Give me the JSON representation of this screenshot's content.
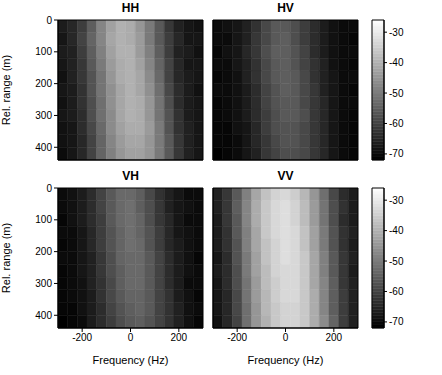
{
  "chart_data": [
    {
      "type": "heatmap",
      "title": "HH",
      "ylabel": "Rel. range (m)",
      "xlim": [
        -300,
        300
      ],
      "ylim": [
        0,
        440
      ],
      "xticks": [
        -200,
        0,
        200
      ],
      "yticks": [
        0,
        100,
        200,
        300,
        400
      ],
      "tick_labels": "y",
      "x_bins": [
        -300,
        -260,
        -220,
        -180,
        -140,
        -100,
        -60,
        -20,
        20,
        60,
        100,
        140,
        180,
        220,
        260,
        300
      ],
      "y_bins": [
        0,
        40,
        80,
        120,
        160,
        200,
        240,
        280,
        320,
        360,
        400,
        440
      ],
      "cells": [
        [
          -67,
          -65,
          -61,
          -55,
          -48,
          -43,
          -40,
          -41,
          -45,
          -50,
          -56,
          -62,
          -66,
          -68,
          -69
        ],
        [
          -68,
          -65,
          -60,
          -54,
          -48,
          -42,
          -40,
          -41,
          -44,
          -50,
          -56,
          -61,
          -65,
          -68,
          -68
        ],
        [
          -67,
          -66,
          -61,
          -55,
          -49,
          -43,
          -40,
          -40,
          -44,
          -49,
          -55,
          -61,
          -66,
          -67,
          -69
        ],
        [
          -68,
          -66,
          -62,
          -56,
          -50,
          -44,
          -41,
          -40,
          -43,
          -48,
          -54,
          -60,
          -65,
          -68,
          -68
        ],
        [
          -69,
          -66,
          -62,
          -57,
          -51,
          -45,
          -41,
          -40,
          -42,
          -47,
          -53,
          -60,
          -65,
          -67,
          -68
        ],
        [
          -68,
          -67,
          -63,
          -57,
          -51,
          -46,
          -42,
          -40,
          -42,
          -46,
          -52,
          -59,
          -64,
          -67,
          -69
        ],
        [
          -69,
          -67,
          -63,
          -58,
          -52,
          -46,
          -42,
          -40,
          -41,
          -45,
          -51,
          -58,
          -64,
          -67,
          -68
        ],
        [
          -68,
          -67,
          -64,
          -58,
          -52,
          -47,
          -42,
          -40,
          -41,
          -45,
          -51,
          -57,
          -63,
          -67,
          -68
        ],
        [
          -69,
          -68,
          -64,
          -59,
          -53,
          -47,
          -43,
          -41,
          -41,
          -44,
          -50,
          -57,
          -63,
          -66,
          -68
        ],
        [
          -69,
          -68,
          -65,
          -60,
          -54,
          -48,
          -44,
          -42,
          -42,
          -45,
          -50,
          -56,
          -62,
          -66,
          -68
        ],
        [
          -70,
          -68,
          -65,
          -60,
          -54,
          -49,
          -45,
          -43,
          -43,
          -45,
          -50,
          -56,
          -62,
          -66,
          -68
        ]
      ]
    },
    {
      "type": "heatmap",
      "title": "HV",
      "xlim": [
        -300,
        300
      ],
      "ylim": [
        0,
        440
      ],
      "xticks": [
        -200,
        0,
        200
      ],
      "yticks": [
        0,
        100,
        200,
        300,
        400
      ],
      "tick_labels": false,
      "x_bins": [
        -300,
        -260,
        -220,
        -180,
        -140,
        -100,
        -60,
        -20,
        20,
        60,
        100,
        140,
        180,
        220,
        260,
        300
      ],
      "y_bins": [
        0,
        40,
        80,
        120,
        160,
        200,
        240,
        280,
        320,
        360,
        400,
        440
      ],
      "cells": [
        [
          -70,
          -69,
          -68,
          -66,
          -63,
          -59,
          -56,
          -56,
          -58,
          -61,
          -64,
          -67,
          -69,
          -70,
          -70
        ],
        [
          -70,
          -70,
          -68,
          -66,
          -62,
          -59,
          -56,
          -55,
          -58,
          -61,
          -64,
          -67,
          -69,
          -70,
          -71
        ],
        [
          -71,
          -69,
          -68,
          -65,
          -62,
          -58,
          -55,
          -55,
          -57,
          -60,
          -64,
          -67,
          -69,
          -70,
          -70
        ],
        [
          -70,
          -70,
          -68,
          -66,
          -63,
          -59,
          -56,
          -55,
          -57,
          -60,
          -63,
          -66,
          -69,
          -70,
          -71
        ],
        [
          -71,
          -70,
          -69,
          -66,
          -63,
          -59,
          -56,
          -55,
          -56,
          -59,
          -63,
          -66,
          -68,
          -70,
          -70
        ],
        [
          -70,
          -70,
          -69,
          -67,
          -64,
          -60,
          -57,
          -55,
          -56,
          -59,
          -62,
          -66,
          -68,
          -70,
          -71
        ],
        [
          -71,
          -70,
          -69,
          -67,
          -64,
          -60,
          -57,
          -56,
          -56,
          -59,
          -62,
          -65,
          -68,
          -70,
          -70
        ],
        [
          -71,
          -70,
          -69,
          -67,
          -64,
          -61,
          -58,
          -56,
          -56,
          -58,
          -62,
          -65,
          -68,
          -70,
          -71
        ],
        [
          -71,
          -71,
          -69,
          -68,
          -65,
          -61,
          -58,
          -57,
          -57,
          -59,
          -62,
          -65,
          -68,
          -70,
          -71
        ],
        [
          -71,
          -71,
          -70,
          -68,
          -65,
          -62,
          -59,
          -57,
          -57,
          -59,
          -62,
          -65,
          -68,
          -70,
          -71
        ],
        [
          -72,
          -71,
          -70,
          -68,
          -66,
          -62,
          -60,
          -58,
          -58,
          -59,
          -62,
          -65,
          -68,
          -70,
          -71
        ]
      ],
      "colorbar": {
        "range": [
          -72,
          -26
        ],
        "ticks": [
          -70,
          -60,
          -50,
          -40,
          -30
        ]
      }
    },
    {
      "type": "heatmap",
      "title": "VH",
      "xlabel": "Frequency (Hz)",
      "ylabel": "Rel. range (m)",
      "xlim": [
        -300,
        300
      ],
      "ylim": [
        0,
        440
      ],
      "xticks": [
        -200,
        0,
        200
      ],
      "yticks": [
        0,
        100,
        200,
        300,
        400
      ],
      "tick_labels": true,
      "x_bins": [
        -300,
        -260,
        -220,
        -180,
        -140,
        -100,
        -60,
        -20,
        20,
        60,
        100,
        140,
        180,
        220,
        260,
        300
      ],
      "y_bins": [
        0,
        40,
        80,
        120,
        160,
        200,
        240,
        280,
        320,
        360,
        400,
        440
      ],
      "cells": [
        [
          -70,
          -69,
          -67,
          -64,
          -60,
          -56,
          -53,
          -53,
          -55,
          -59,
          -63,
          -66,
          -68,
          -70,
          -70
        ],
        [
          -70,
          -69,
          -67,
          -64,
          -60,
          -56,
          -53,
          -52,
          -55,
          -58,
          -62,
          -66,
          -68,
          -69,
          -70
        ],
        [
          -71,
          -69,
          -67,
          -64,
          -61,
          -56,
          -53,
          -52,
          -54,
          -58,
          -62,
          -65,
          -68,
          -70,
          -70
        ],
        [
          -70,
          -70,
          -68,
          -65,
          -61,
          -57,
          -54,
          -52,
          -54,
          -57,
          -61,
          -65,
          -68,
          -69,
          -70
        ],
        [
          -71,
          -70,
          -68,
          -65,
          -61,
          -57,
          -54,
          -52,
          -53,
          -57,
          -61,
          -65,
          -67,
          -69,
          -70
        ],
        [
          -70,
          -70,
          -68,
          -66,
          -62,
          -58,
          -54,
          -53,
          -53,
          -56,
          -60,
          -64,
          -67,
          -69,
          -71
        ],
        [
          -71,
          -70,
          -68,
          -66,
          -62,
          -58,
          -55,
          -53,
          -53,
          -56,
          -60,
          -64,
          -67,
          -69,
          -70
        ],
        [
          -71,
          -70,
          -69,
          -66,
          -63,
          -59,
          -55,
          -53,
          -53,
          -56,
          -60,
          -64,
          -67,
          -70,
          -70
        ],
        [
          -71,
          -70,
          -69,
          -67,
          -63,
          -59,
          -56,
          -54,
          -54,
          -56,
          -60,
          -63,
          -67,
          -69,
          -71
        ],
        [
          -71,
          -71,
          -69,
          -67,
          -64,
          -60,
          -57,
          -55,
          -54,
          -56,
          -60,
          -63,
          -66,
          -69,
          -70
        ],
        [
          -72,
          -71,
          -70,
          -67,
          -64,
          -61,
          -58,
          -56,
          -55,
          -57,
          -60,
          -63,
          -66,
          -69,
          -71
        ]
      ]
    },
    {
      "type": "heatmap",
      "title": "VV",
      "xlabel": "Frequency (Hz)",
      "xlim": [
        -300,
        300
      ],
      "ylim": [
        0,
        440
      ],
      "xticks": [
        -200,
        0,
        200
      ],
      "yticks": [
        0,
        100,
        200,
        300,
        400
      ],
      "tick_labels": "x",
      "x_bins": [
        -300,
        -260,
        -220,
        -180,
        -140,
        -100,
        -60,
        -20,
        20,
        60,
        100,
        140,
        180,
        220,
        260,
        300
      ],
      "y_bins": [
        0,
        40,
        80,
        120,
        160,
        200,
        240,
        280,
        320,
        360,
        400,
        440
      ],
      "cells": [
        [
          -66,
          -62,
          -56,
          -49,
          -42,
          -37,
          -34,
          -33,
          -35,
          -39,
          -45,
          -52,
          -59,
          -64,
          -67
        ],
        [
          -66,
          -62,
          -55,
          -48,
          -41,
          -36,
          -33,
          -32,
          -34,
          -38,
          -44,
          -51,
          -58,
          -63,
          -67
        ],
        [
          -67,
          -62,
          -56,
          -48,
          -41,
          -36,
          -33,
          -32,
          -34,
          -38,
          -44,
          -51,
          -58,
          -64,
          -67
        ],
        [
          -67,
          -63,
          -56,
          -49,
          -42,
          -36,
          -33,
          -32,
          -33,
          -37,
          -43,
          -50,
          -57,
          -63,
          -66
        ],
        [
          -67,
          -63,
          -57,
          -49,
          -42,
          -37,
          -34,
          -32,
          -33,
          -37,
          -43,
          -50,
          -57,
          -63,
          -67
        ],
        [
          -68,
          -64,
          -57,
          -50,
          -43,
          -37,
          -34,
          -32,
          -33,
          -36,
          -42,
          -49,
          -56,
          -62,
          -66
        ],
        [
          -67,
          -64,
          -58,
          -50,
          -43,
          -38,
          -34,
          -33,
          -33,
          -36,
          -42,
          -49,
          -56,
          -62,
          -67
        ],
        [
          -68,
          -64,
          -58,
          -51,
          -44,
          -38,
          -35,
          -33,
          -33,
          -36,
          -42,
          -48,
          -55,
          -62,
          -66
        ],
        [
          -68,
          -65,
          -59,
          -51,
          -44,
          -39,
          -35,
          -33,
          -33,
          -36,
          -41,
          -48,
          -55,
          -61,
          -66
        ],
        [
          -68,
          -65,
          -59,
          -52,
          -45,
          -39,
          -36,
          -34,
          -34,
          -36,
          -41,
          -48,
          -55,
          -61,
          -66
        ],
        [
          -69,
          -65,
          -60,
          -52,
          -45,
          -40,
          -36,
          -34,
          -34,
          -36,
          -41,
          -47,
          -54,
          -61,
          -66
        ]
      ],
      "colorbar": {
        "range": [
          -72,
          -26
        ],
        "ticks": [
          -70,
          -60,
          -50,
          -40,
          -30
        ]
      }
    }
  ]
}
